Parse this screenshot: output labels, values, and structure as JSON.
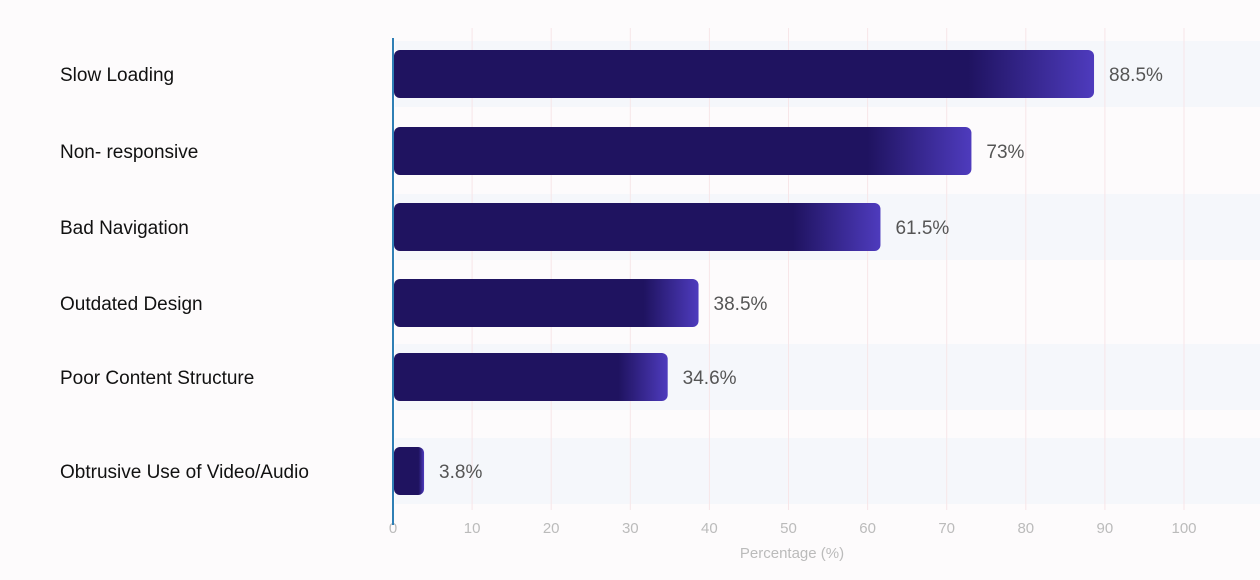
{
  "chart_data": {
    "type": "bar",
    "orientation": "horizontal",
    "categories": [
      "Slow Loading",
      "Non- responsive",
      "Bad Navigation",
      "Outdated Design",
      "Poor Content Structure",
      "Obtrusive Use of Video/Audio"
    ],
    "values": [
      88.5,
      73,
      61.5,
      38.5,
      34.6,
      3.8
    ],
    "value_labels": [
      "88.5%",
      "73%",
      "61.5%",
      "38.5%",
      "34.6%",
      "3.8%"
    ],
    "xlabel": "Percentage (%)",
    "ylabel": "",
    "xlim": [
      0,
      100
    ],
    "xticks": [
      "0",
      "10",
      "20",
      "30",
      "40",
      "50",
      "60",
      "70",
      "80",
      "90",
      "100"
    ],
    "grid": true,
    "legend": "none",
    "colors": {
      "bar_dark": "#1f1360",
      "bar_light": "#4e3bbd",
      "axis": "#2f7fb5",
      "band": "#f5f7fb",
      "grid": "#f7e6e8"
    }
  }
}
